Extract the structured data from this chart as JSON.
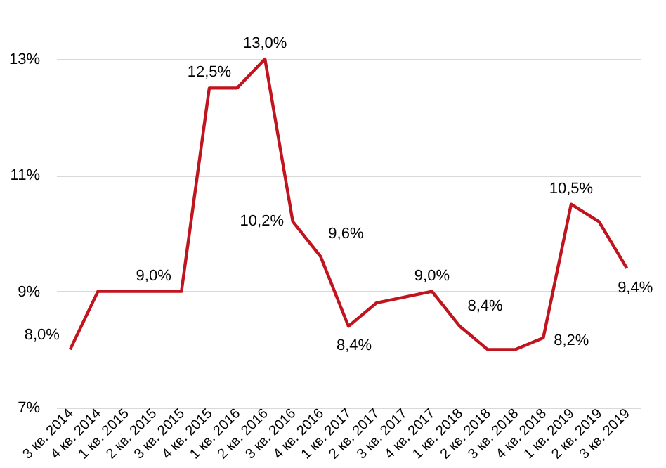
{
  "chart_data": {
    "type": "line",
    "categories": [
      "3 кв. 2014",
      "4 кв. 2014",
      "1 кв. 2015",
      "2 кв. 2015",
      "3 кв. 2015",
      "4 кв. 2015",
      "1 кв. 2016",
      "2 кв. 2016",
      "3 кв. 2016",
      "4 кв. 2016",
      "1 кв. 2017",
      "2 кв. 2017",
      "3 кв. 2017",
      "4 кв. 2017",
      "1 кв. 2018",
      "2 кв. 2018",
      "3 кв. 2018",
      "4 кв. 2018",
      "1 кв. 2019",
      "2 кв. 2019",
      "3 кв. 2019"
    ],
    "series": [
      {
        "color": "#c0141e",
        "values": [
          8.0,
          9.0,
          9.0,
          9.0,
          9.0,
          12.5,
          12.5,
          13.0,
          10.2,
          9.6,
          8.4,
          8.8,
          8.9,
          9.0,
          8.4,
          8.0,
          8.0,
          8.2,
          10.5,
          10.2,
          9.4
        ],
        "value_labels": [
          "8,0%",
          null,
          null,
          "9,0%",
          null,
          "12,5%",
          null,
          "13,0%",
          "10,2%",
          "9,6%",
          "8,4%",
          null,
          null,
          "9,0%",
          "8,4%",
          null,
          null,
          "8,2%",
          "10,5%",
          null,
          "9,4%"
        ]
      }
    ],
    "ylim": [
      7,
      13
    ],
    "yticks": [
      {
        "value": 7,
        "label": "7%"
      },
      {
        "value": 9,
        "label": "9%"
      },
      {
        "value": 11,
        "label": "11%"
      },
      {
        "value": 13,
        "label": "13%"
      }
    ],
    "grid": "y",
    "marker": "none",
    "line_style": "solid"
  }
}
